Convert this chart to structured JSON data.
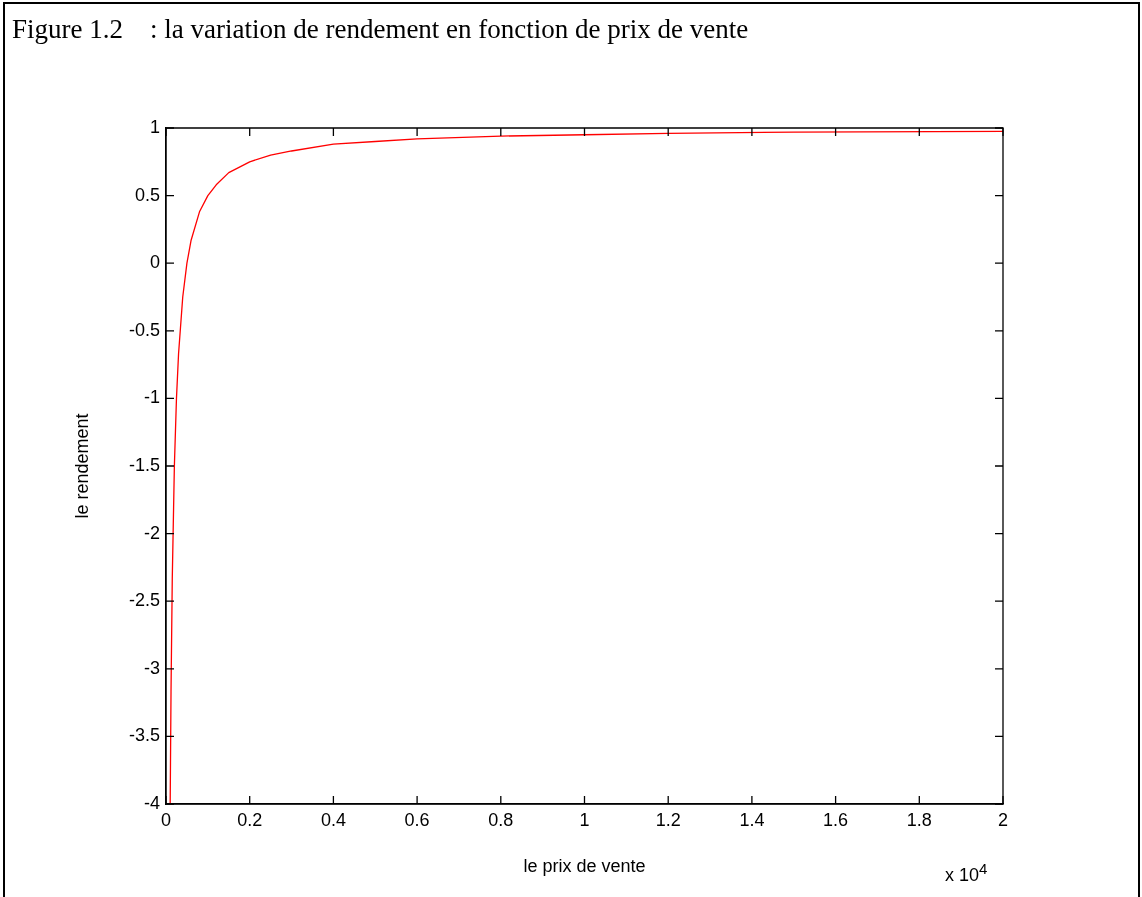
{
  "chart_data": {
    "type": "line",
    "title": "Figure 1.2    : la variation de rendement en fonction de prix de vente",
    "xlabel": "le prix de vente",
    "ylabel": "le rendement",
    "annotations": [
      "x 10$^{4}$"
    ],
    "x": [
      0.01,
      0.012,
      0.015,
      0.02,
      0.025,
      0.03,
      0.04,
      0.05,
      0.06,
      0.08,
      0.1,
      0.12,
      0.15,
      0.2,
      0.25,
      0.3,
      0.4,
      0.5,
      0.6,
      0.8,
      1,
      1.2,
      1.5,
      2
    ],
    "series": [
      {
        "color": "#ff0000",
        "values": [
          -4,
          -3.17,
          -2.33,
          -1.5,
          -1,
          -0.67,
          -0.25,
          0,
          0.17,
          0.38,
          0.5,
          0.58,
          0.67,
          0.75,
          0.8,
          0.83,
          0.88,
          0.9,
          0.92,
          0.94,
          0.95,
          0.96,
          0.97,
          0.975
        ]
      }
    ],
    "xlim": [
      0,
      2
    ],
    "xticks": [
      0,
      0.2,
      0.4,
      0.6,
      0.8,
      1,
      1.2,
      1.4,
      1.6,
      1.8,
      2
    ],
    "ylim": [
      -4,
      1
    ],
    "yticks": [
      -4,
      -3.5,
      -3,
      -2.5,
      -2,
      -1.5,
      -1,
      -0.5,
      0,
      0.5,
      1
    ],
    "grid": false,
    "legend": false,
    "marker": "none",
    "line_style": "solid"
  }
}
